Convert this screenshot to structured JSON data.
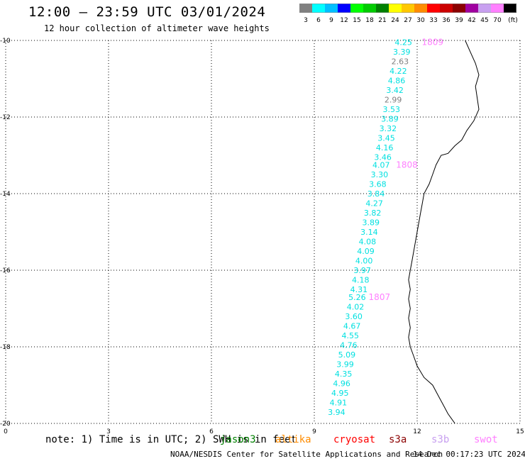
{
  "title": "12:00 – 23:59 UTC 03/01/2024",
  "subtitle": "12 hour collection of altimeter wave heights",
  "colorbar": {
    "colors": [
      "#808080",
      "#00ffff",
      "#00bfff",
      "#0000ff",
      "#00ff00",
      "#00cc00",
      "#008000",
      "#ffff00",
      "#ffc800",
      "#ff8c00",
      "#ff0000",
      "#cc0000",
      "#8b0000",
      "#a000a0",
      "#c8a0f0",
      "#ff80ff",
      "#000000"
    ],
    "labels": [
      "3",
      "6",
      "9",
      "12",
      "15",
      "18",
      "21",
      "24",
      "27",
      "30",
      "33",
      "36",
      "39",
      "42",
      "45",
      "70",
      "(ft)"
    ]
  },
  "axes": {
    "x_ticks": [
      "0",
      "3",
      "6",
      "9",
      "12",
      "15"
    ],
    "y_ticks": [
      "-10",
      "-12",
      "-14",
      "-16",
      "-18",
      "-20"
    ],
    "x_range": [
      0,
      15
    ],
    "y_range": [
      -20,
      -10
    ],
    "grid": true
  },
  "chart_data": {
    "type": "map",
    "wave_heights": [
      {
        "lon": 11.6,
        "lat": -10.05,
        "value": "4.25",
        "color": "#00e0e0"
      },
      {
        "lon": 11.55,
        "lat": -10.3,
        "value": "3.39",
        "color": "#00e0e0"
      },
      {
        "lon": 11.5,
        "lat": -10.55,
        "value": "2.63",
        "color": "#808080"
      },
      {
        "lon": 11.45,
        "lat": -10.8,
        "value": "4.22",
        "color": "#00e0e0"
      },
      {
        "lon": 11.4,
        "lat": -11.05,
        "value": "4.86",
        "color": "#00e0e0"
      },
      {
        "lon": 11.35,
        "lat": -11.3,
        "value": "3.42",
        "color": "#00e0e0"
      },
      {
        "lon": 11.3,
        "lat": -11.55,
        "value": "2.99",
        "color": "#808080"
      },
      {
        "lon": 11.25,
        "lat": -11.8,
        "value": "3.53",
        "color": "#00e0e0"
      },
      {
        "lon": 11.2,
        "lat": -12.05,
        "value": "3.89",
        "color": "#00e0e0"
      },
      {
        "lon": 11.15,
        "lat": -12.3,
        "value": "3.32",
        "color": "#00e0e0"
      },
      {
        "lon": 11.1,
        "lat": -12.55,
        "value": "3.45",
        "color": "#00e0e0"
      },
      {
        "lon": 11.05,
        "lat": -12.8,
        "value": "4.16",
        "color": "#00e0e0"
      },
      {
        "lon": 11.0,
        "lat": -13.05,
        "value": "3.46",
        "color": "#00e0e0"
      },
      {
        "lon": 10.95,
        "lat": -13.25,
        "value": "4.07",
        "color": "#00e0e0"
      },
      {
        "lon": 10.9,
        "lat": -13.5,
        "value": "3.30",
        "color": "#00e0e0"
      },
      {
        "lon": 10.85,
        "lat": -13.75,
        "value": "3.68",
        "color": "#00e0e0"
      },
      {
        "lon": 10.8,
        "lat": -14.0,
        "value": "3.84",
        "color": "#00e0e0"
      },
      {
        "lon": 10.75,
        "lat": -14.25,
        "value": "4.27",
        "color": "#00e0e0"
      },
      {
        "lon": 10.7,
        "lat": -14.5,
        "value": "3.82",
        "color": "#00e0e0"
      },
      {
        "lon": 10.65,
        "lat": -14.75,
        "value": "3.89",
        "color": "#00e0e0"
      },
      {
        "lon": 10.6,
        "lat": -15.0,
        "value": "3.14",
        "color": "#00e0e0"
      },
      {
        "lon": 10.55,
        "lat": -15.25,
        "value": "4.08",
        "color": "#00e0e0"
      },
      {
        "lon": 10.5,
        "lat": -15.5,
        "value": "4.09",
        "color": "#00e0e0"
      },
      {
        "lon": 10.45,
        "lat": -15.75,
        "value": "4.00",
        "color": "#00e0e0"
      },
      {
        "lon": 10.4,
        "lat": -16.0,
        "value": "3.97",
        "color": "#00e0e0"
      },
      {
        "lon": 10.35,
        "lat": -16.25,
        "value": "4.18",
        "color": "#00e0e0"
      },
      {
        "lon": 10.3,
        "lat": -16.5,
        "value": "4.31",
        "color": "#00e0e0"
      },
      {
        "lon": 10.25,
        "lat": -16.7,
        "value": "5.26",
        "color": "#00e0e0"
      },
      {
        "lon": 10.2,
        "lat": -16.95,
        "value": "4.02",
        "color": "#00e0e0"
      },
      {
        "lon": 10.15,
        "lat": -17.2,
        "value": "3.60",
        "color": "#00e0e0"
      },
      {
        "lon": 10.1,
        "lat": -17.45,
        "value": "4.67",
        "color": "#00e0e0"
      },
      {
        "lon": 10.05,
        "lat": -17.7,
        "value": "4.55",
        "color": "#00e0e0"
      },
      {
        "lon": 10.0,
        "lat": -17.95,
        "value": "4.76",
        "color": "#00e0e0"
      },
      {
        "lon": 9.95,
        "lat": -18.2,
        "value": "5.09",
        "color": "#00e0e0"
      },
      {
        "lon": 9.9,
        "lat": -18.45,
        "value": "3.99",
        "color": "#00e0e0"
      },
      {
        "lon": 9.85,
        "lat": -18.7,
        "value": "4.35",
        "color": "#00e0e0"
      },
      {
        "lon": 9.8,
        "lat": -18.95,
        "value": "4.96",
        "color": "#00e0e0"
      },
      {
        "lon": 9.75,
        "lat": -19.2,
        "value": "4.95",
        "color": "#00e0e0"
      },
      {
        "lon": 9.7,
        "lat": -19.45,
        "value": "4.91",
        "color": "#00e0e0"
      },
      {
        "lon": 9.65,
        "lat": -19.7,
        "value": "3.94",
        "color": "#00e0e0"
      }
    ],
    "time_labels": [
      {
        "lon": 12.45,
        "lat": -10.05,
        "value": "1809",
        "color": "#ff80ff"
      },
      {
        "lon": 11.7,
        "lat": -13.25,
        "value": "1808",
        "color": "#ff80ff"
      },
      {
        "lon": 10.9,
        "lat": -16.7,
        "value": "1807",
        "color": "#ff80ff"
      }
    ],
    "coastline": [
      [
        13.4,
        -10.0
      ],
      [
        13.55,
        -10.3
      ],
      [
        13.7,
        -10.6
      ],
      [
        13.8,
        -10.9
      ],
      [
        13.7,
        -11.2
      ],
      [
        13.75,
        -11.5
      ],
      [
        13.8,
        -11.8
      ],
      [
        13.65,
        -12.1
      ],
      [
        13.45,
        -12.35
      ],
      [
        13.3,
        -12.6
      ],
      [
        13.1,
        -12.75
      ],
      [
        12.9,
        -12.95
      ],
      [
        12.7,
        -13.0
      ],
      [
        12.55,
        -13.25
      ],
      [
        12.45,
        -13.5
      ],
      [
        12.35,
        -13.75
      ],
      [
        12.2,
        -14.0
      ],
      [
        12.15,
        -14.25
      ],
      [
        12.1,
        -14.5
      ],
      [
        12.05,
        -14.75
      ],
      [
        12.0,
        -15.0
      ],
      [
        11.95,
        -15.25
      ],
      [
        11.9,
        -15.5
      ],
      [
        11.85,
        -15.75
      ],
      [
        11.8,
        -16.0
      ],
      [
        11.75,
        -16.25
      ],
      [
        11.8,
        -16.5
      ],
      [
        11.75,
        -16.75
      ],
      [
        11.8,
        -17.0
      ],
      [
        11.75,
        -17.25
      ],
      [
        11.8,
        -17.5
      ],
      [
        11.75,
        -17.75
      ],
      [
        11.8,
        -18.0
      ],
      [
        11.9,
        -18.25
      ],
      [
        12.0,
        -18.5
      ],
      [
        12.2,
        -18.8
      ],
      [
        12.45,
        -19.0
      ],
      [
        12.6,
        -19.25
      ],
      [
        12.75,
        -19.5
      ],
      [
        12.9,
        -19.75
      ],
      [
        13.1,
        -20.0
      ]
    ]
  },
  "note": "note: 1) Time is in UTC; 2) SWH is in feet",
  "satellites": [
    {
      "name": "jason3",
      "color": "#008000"
    },
    {
      "name": "altika",
      "color": "#ff8c00"
    },
    {
      "name": "cryosat",
      "color": "#ff0000"
    },
    {
      "name": "s3a",
      "color": "#8b0000"
    },
    {
      "name": "s3b",
      "color": "#c8a0f0"
    },
    {
      "name": "swot",
      "color": "#ff80ff"
    }
  ],
  "footer": {
    "left": "NOAA/NESDIS Center for Satellite Applications and Research",
    "right": "14 Dec 00:17:23 UTC 2024"
  }
}
